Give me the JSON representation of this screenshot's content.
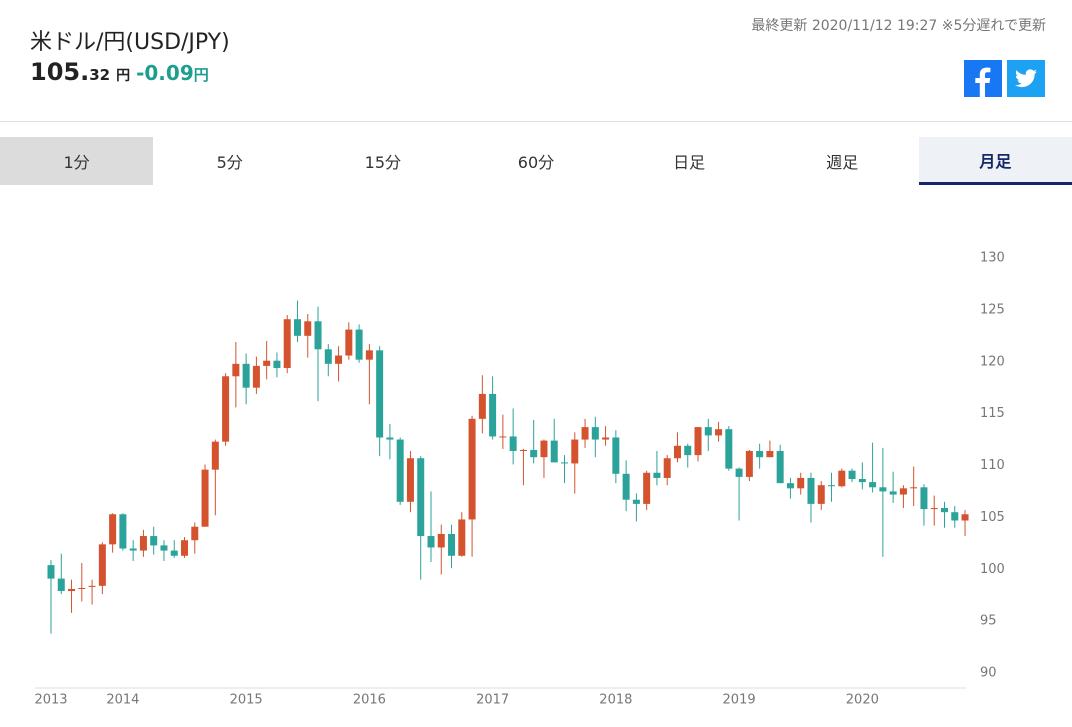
{
  "header": {
    "title": "米ドル/円(USD/JPY)",
    "price_main": "105.",
    "price_sub": "32",
    "price_unit": "円",
    "change": "-0.09",
    "change_unit": "円",
    "updated": "最終更新 2020/11/12 19:27 ※5分遅れで更新"
  },
  "tabs": [
    "1分",
    "5分",
    "15分",
    "60分",
    "日足",
    "週足",
    "月足"
  ],
  "active_tab": 6,
  "chart_data": {
    "type": "candlestick",
    "up_color": "#d4522e",
    "down_color": "#2ba39a",
    "ylim": [
      90,
      130
    ],
    "yticks": [
      90,
      95,
      100,
      105,
      110,
      115,
      120,
      125,
      130
    ],
    "categories": [
      "2013",
      null,
      null,
      null,
      null,
      null,
      null,
      "2014",
      null,
      null,
      null,
      null,
      null,
      null,
      null,
      null,
      null,
      null,
      null,
      "2015",
      null,
      null,
      null,
      null,
      null,
      null,
      null,
      null,
      null,
      null,
      null,
      "2016",
      null,
      null,
      null,
      null,
      null,
      null,
      null,
      null,
      null,
      null,
      null,
      "2017",
      null,
      null,
      null,
      null,
      null,
      null,
      null,
      null,
      null,
      null,
      null,
      "2018",
      null,
      null,
      null,
      null,
      null,
      null,
      null,
      null,
      null,
      null,
      null,
      "2019",
      null,
      null,
      null,
      null,
      null,
      null,
      null,
      null,
      null,
      null,
      null,
      "2020",
      null,
      null,
      null,
      null,
      null,
      null,
      null,
      null,
      null,
      null
    ],
    "open": [
      100.4,
      99.1,
      97.9,
      98.1,
      98.3,
      98.4,
      102.4,
      105.3,
      102.0,
      101.8,
      103.2,
      102.3,
      101.8,
      101.3,
      102.8,
      104.1,
      109.6,
      112.3,
      118.6,
      119.8,
      117.5,
      119.6,
      120.1,
      119.4,
      124.1,
      122.5,
      123.9,
      121.2,
      119.8,
      120.6,
      123.1,
      120.2,
      121.1,
      112.7,
      112.5,
      106.5,
      110.7,
      103.2,
      102.1,
      103.4,
      101.3,
      104.8,
      114.5,
      116.9,
      112.8,
      112.8,
      111.4,
      111.5,
      110.8,
      112.4,
      110.3,
      110.2,
      112.5,
      113.7,
      112.5,
      112.7,
      109.2,
      106.7,
      106.3,
      109.3,
      108.8,
      110.7,
      111.9,
      111.0,
      113.7,
      112.9,
      113.5,
      109.7,
      108.9,
      111.4,
      110.8,
      111.4,
      108.3,
      107.8,
      108.8,
      106.3,
      108.1,
      108.0,
      109.5,
      108.7,
      108.4,
      107.9,
      107.5,
      107.2,
      107.8,
      107.9,
      105.8,
      105.9,
      105.5,
      104.7
    ],
    "high": [
      100.9,
      101.5,
      99.0,
      100.6,
      99.0,
      102.6,
      105.4,
      105.4,
      102.8,
      103.8,
      104.1,
      102.8,
      102.8,
      103.1,
      104.5,
      110.1,
      112.5,
      118.9,
      121.9,
      120.8,
      120.5,
      122.0,
      120.9,
      124.5,
      125.9,
      124.6,
      125.3,
      121.7,
      121.5,
      123.8,
      123.6,
      121.7,
      121.5,
      114.0,
      112.7,
      111.4,
      110.9,
      107.5,
      104.3,
      104.3,
      105.5,
      114.8,
      118.7,
      118.6,
      114.9,
      115.5,
      111.6,
      114.4,
      112.5,
      114.5,
      111.0,
      113.2,
      114.5,
      114.7,
      113.8,
      113.4,
      110.5,
      107.3,
      109.5,
      111.4,
      111.0,
      113.2,
      112.1,
      113.7,
      114.5,
      114.2,
      113.8,
      109.8,
      111.5,
      112.1,
      112.4,
      112.0,
      108.8,
      109.3,
      109.3,
      108.5,
      109.3,
      109.7,
      109.7,
      110.3,
      112.2,
      111.7,
      109.4,
      108.1,
      109.9,
      108.2,
      107.1,
      106.5,
      106.1,
      105.7
    ],
    "low": [
      93.8,
      97.6,
      95.8,
      96.9,
      96.6,
      97.6,
      101.6,
      101.8,
      100.8,
      101.2,
      101.4,
      100.8,
      101.1,
      101.1,
      101.5,
      104.1,
      105.2,
      111.9,
      115.6,
      115.9,
      116.9,
      118.3,
      118.5,
      118.9,
      121.9,
      120.4,
      116.2,
      118.6,
      118.1,
      120.2,
      119.9,
      115.9,
      110.9,
      110.6,
      106.2,
      105.5,
      99.0,
      100.7,
      99.5,
      100.1,
      101.2,
      101.2,
      113.1,
      112.5,
      111.6,
      110.1,
      108.1,
      110.2,
      108.8,
      110.6,
      108.3,
      107.3,
      111.7,
      110.8,
      111.9,
      108.3,
      105.6,
      104.6,
      105.7,
      108.1,
      108.1,
      110.3,
      109.8,
      110.4,
      111.4,
      112.3,
      109.5,
      104.7,
      108.5,
      109.7,
      110.8,
      108.3,
      106.8,
      107.2,
      104.5,
      105.7,
      106.5,
      107.9,
      108.4,
      107.7,
      107.4,
      101.2,
      106.4,
      105.9,
      106.1,
      104.2,
      104.2,
      104.0,
      104.0,
      103.2
    ],
    "close": [
      99.1,
      97.9,
      98.1,
      98.2,
      98.4,
      102.4,
      105.3,
      102.0,
      101.8,
      103.2,
      102.3,
      101.8,
      101.3,
      102.8,
      104.1,
      109.6,
      112.3,
      118.6,
      119.8,
      117.5,
      119.6,
      120.1,
      119.4,
      124.1,
      122.5,
      123.9,
      121.2,
      119.8,
      120.6,
      123.1,
      120.2,
      121.1,
      112.7,
      112.5,
      106.5,
      110.7,
      103.2,
      102.1,
      103.4,
      101.3,
      104.8,
      114.5,
      116.9,
      112.8,
      112.8,
      111.4,
      111.5,
      110.8,
      112.4,
      110.3,
      110.2,
      112.5,
      113.7,
      112.5,
      112.7,
      109.2,
      106.7,
      106.3,
      109.3,
      108.8,
      110.7,
      111.9,
      111.0,
      113.7,
      112.9,
      113.5,
      109.7,
      108.9,
      111.4,
      110.8,
      111.4,
      108.3,
      107.8,
      108.8,
      106.3,
      108.1,
      108.0,
      109.5,
      108.7,
      108.4,
      107.9,
      107.5,
      107.2,
      107.8,
      107.9,
      105.8,
      105.9,
      105.5,
      104.7,
      105.3
    ]
  }
}
